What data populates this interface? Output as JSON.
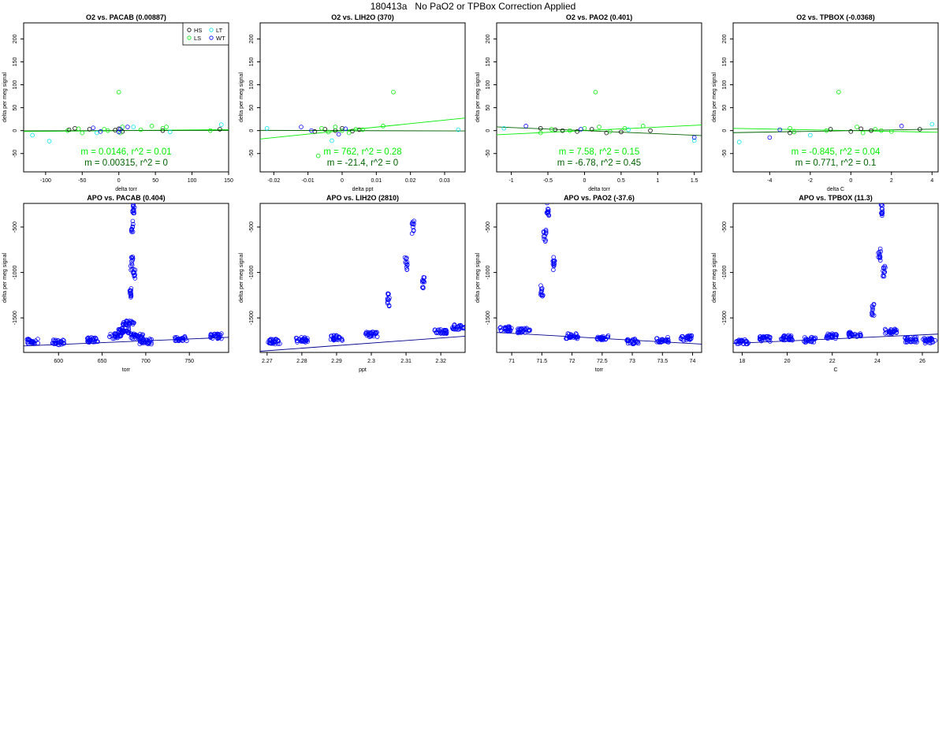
{
  "page_title": "180413a   No PaO2 or TPBox Correction Applied",
  "legend_entries": [
    {
      "label": "HS",
      "color": "#000000"
    },
    {
      "label": "LT",
      "color": "#00e5ee"
    },
    {
      "label": "LS",
      "color": "#00ee00"
    },
    {
      "label": "WT",
      "color": "#0000ff"
    }
  ],
  "chart_data": [
    {
      "type": "scatter",
      "title": "O2 vs. PACAB (0.00887)",
      "xlabel": "delta torr",
      "ylabel": "delta per meg signal",
      "xlim": [
        -130,
        150
      ],
      "ylim": [
        -90,
        235
      ],
      "xticks": [
        -100,
        -50,
        0,
        50,
        100,
        150
      ],
      "yticks": [
        -50,
        0,
        50,
        100,
        150,
        200
      ],
      "legend": "top-right",
      "annotations": [
        {
          "text": "m = 0.0146, r^2 = 0.01",
          "color": "#00ee00"
        },
        {
          "text": "m = 0.00315, r^2 = 0",
          "color": "#006400"
        }
      ],
      "fit_lines": [
        {
          "color": "#00ee00",
          "slope": 0.0146,
          "intercept": 0
        },
        {
          "color": "#006400",
          "slope": 0.00315,
          "intercept": 0
        }
      ],
      "series": [
        {
          "name": "HS",
          "color": "#000000",
          "x": [
            -68,
            -60,
            -40,
            -5,
            0,
            5,
            60,
            138
          ],
          "y": [
            2,
            5,
            3,
            1,
            4,
            -2,
            0,
            3
          ]
        },
        {
          "name": "LT",
          "color": "#00e5ee",
          "x": [
            -118,
            -95,
            -30,
            20,
            70,
            140
          ],
          "y": [
            -10,
            -23,
            -5,
            8,
            -3,
            13
          ]
        },
        {
          "name": "LS",
          "color": "#00ee00",
          "x": [
            -70,
            -55,
            -50,
            -20,
            -15,
            0,
            2,
            5,
            30,
            45,
            60,
            65,
            125
          ],
          "y": [
            0,
            4,
            -5,
            3,
            0,
            84,
            -5,
            8,
            2,
            10,
            5,
            8,
            0
          ]
        },
        {
          "name": "WT",
          "color": "#0000ff",
          "x": [
            -35,
            -25,
            0,
            2,
            12
          ],
          "y": [
            6,
            -2,
            -3,
            3,
            8
          ]
        }
      ]
    },
    {
      "type": "scatter",
      "title": "O2 vs. LIH2O (370)",
      "xlabel": "delta ppt",
      "ylabel": "delta per meg signal",
      "xlim": [
        -0.024,
        0.036
      ],
      "ylim": [
        -90,
        235
      ],
      "xticks": [
        -0.02,
        -0.01,
        0,
        0.01,
        0.02,
        0.03
      ],
      "yticks": [
        -50,
        0,
        50,
        100,
        150,
        200
      ],
      "annotations": [
        {
          "text": "m = 762, r^2 = 0.28",
          "color": "#00ee00"
        },
        {
          "text": "m = -21.4, r^2 = 0",
          "color": "#006400"
        }
      ],
      "fit_lines": [
        {
          "color": "#00ee00",
          "slope": 762,
          "intercept": 0
        },
        {
          "color": "#006400",
          "slope": -21.4,
          "intercept": 0
        }
      ],
      "series": [
        {
          "name": "HS",
          "color": "#000000",
          "x": [
            -0.008,
            -0.005,
            -0.002,
            0.0,
            0.003,
            0.005
          ],
          "y": [
            -2,
            3,
            0,
            5,
            -1,
            2
          ]
        },
        {
          "name": "LT",
          "color": "#00e5ee",
          "x": [
            -0.022,
            -0.003,
            0.034
          ],
          "y": [
            5,
            -22,
            2
          ]
        },
        {
          "name": "LS",
          "color": "#00ee00",
          "x": [
            -0.007,
            -0.006,
            -0.004,
            -0.002,
            0.0,
            0.002,
            0.004,
            0.006,
            0.012,
            0.015
          ],
          "y": [
            -55,
            5,
            -3,
            8,
            0,
            -5,
            3,
            2,
            10,
            84
          ]
        },
        {
          "name": "WT",
          "color": "#0000ff",
          "x": [
            -0.012,
            -0.009,
            -0.001,
            0.001
          ],
          "y": [
            8,
            0,
            -8,
            4
          ]
        }
      ]
    },
    {
      "type": "scatter",
      "title": "O2 vs. PAO2 (0.401)",
      "xlabel": "delta torr",
      "ylabel": "delta per meg signal",
      "xlim": [
        -1.2,
        1.6
      ],
      "ylim": [
        -90,
        235
      ],
      "xticks": [
        -1.0,
        -0.5,
        0.0,
        0.5,
        1.0,
        1.5
      ],
      "yticks": [
        -50,
        0,
        50,
        100,
        150,
        200
      ],
      "annotations": [
        {
          "text": "m = 7.58, r^2 = 0.15",
          "color": "#00ee00"
        },
        {
          "text": "m = -6.78, r^2 = 0.45",
          "color": "#006400"
        }
      ],
      "fit_lines": [
        {
          "color": "#00ee00",
          "slope": 7.58,
          "intercept": 0
        },
        {
          "color": "#006400",
          "slope": -6.78,
          "intercept": 0
        }
      ],
      "series": [
        {
          "name": "HS",
          "color": "#000000",
          "x": [
            -0.6,
            -0.4,
            -0.3,
            -0.1,
            0.1,
            0.3,
            0.5,
            0.9
          ],
          "y": [
            5,
            2,
            0,
            -2,
            3,
            -5,
            -3,
            0
          ]
        },
        {
          "name": "LT",
          "color": "#00e5ee",
          "x": [
            -1.1,
            1.5,
            0.6
          ],
          "y": [
            5,
            -22,
            2
          ]
        },
        {
          "name": "LS",
          "color": "#00ee00",
          "x": [
            -0.6,
            -0.45,
            -0.2,
            0.0,
            0.15,
            0.2,
            0.35,
            0.55,
            0.8
          ],
          "y": [
            -5,
            3,
            0,
            5,
            84,
            8,
            -2,
            5,
            10
          ]
        },
        {
          "name": "WT",
          "color": "#0000ff",
          "x": [
            -0.8,
            -0.05,
            1.5
          ],
          "y": [
            10,
            3,
            -15
          ]
        }
      ]
    },
    {
      "type": "scatter",
      "title": "O2 vs. TPBOX (-0.0368)",
      "xlabel": "delta C",
      "ylabel": "delta per meg signal",
      "xlim": [
        -5.8,
        4.3
      ],
      "ylim": [
        -90,
        235
      ],
      "xticks": [
        -4,
        -2,
        0,
        2,
        4
      ],
      "yticks": [
        -50,
        0,
        50,
        100,
        150,
        200
      ],
      "annotations": [
        {
          "text": "m = -0.845, r^2 = 0.04",
          "color": "#00ee00"
        },
        {
          "text": "m = 0.771, r^2 = 0.1",
          "color": "#006400"
        }
      ],
      "fit_lines": [
        {
          "color": "#00ee00",
          "slope": -0.845,
          "intercept": 0
        },
        {
          "color": "#006400",
          "slope": 0.771,
          "intercept": 0
        }
      ],
      "series": [
        {
          "name": "HS",
          "color": "#000000",
          "x": [
            -3,
            -1,
            0,
            0.5,
            1,
            3.4
          ],
          "y": [
            -5,
            3,
            -2,
            4,
            0,
            3
          ]
        },
        {
          "name": "LT",
          "color": "#00e5ee",
          "x": [
            -5.5,
            -2,
            4
          ],
          "y": [
            -25,
            -10,
            14
          ]
        },
        {
          "name": "LS",
          "color": "#00ee00",
          "x": [
            -3,
            -2.8,
            -1.2,
            -0.6,
            0.3,
            0.6,
            1.2,
            1.5,
            2
          ],
          "y": [
            5,
            -3,
            0,
            84,
            8,
            -5,
            3,
            0,
            -2
          ]
        },
        {
          "name": "WT",
          "color": "#0000ff",
          "x": [
            -4,
            -3.5,
            2.5
          ],
          "y": [
            -15,
            2,
            10
          ]
        }
      ]
    },
    {
      "type": "scatter",
      "title": "APO vs. PACAB (0.404)",
      "xlabel": "torr",
      "ylabel": "delta per meg signal",
      "xlim": [
        560,
        795
      ],
      "ylim": [
        -1880,
        -240
      ],
      "xticks": [
        600,
        650,
        700,
        750
      ],
      "yticks": [
        -500,
        -1000,
        -1500
      ],
      "fit_lines": [
        {
          "color": "#00008b",
          "slope": 0.404,
          "intercept": -2035
        }
      ],
      "series": [
        {
          "color": "#0000ff",
          "x": [
            570,
            600,
            640,
            665,
            675,
            680,
            683,
            684,
            685,
            686,
            687,
            690,
            700,
            740,
            780
          ],
          "y": [
            -1760,
            -1770,
            -1740,
            -1700,
            -1640,
            -1560,
            -1200,
            -900,
            -500,
            -310,
            -1000,
            -1700,
            -1760,
            -1730,
            -1700
          ]
        }
      ]
    },
    {
      "type": "scatter",
      "title": "APO vs. LIH2O (2810)",
      "xlabel": "ppt",
      "ylabel": "delta per meg signal",
      "xlim": [
        2.268,
        2.327
      ],
      "ylim": [
        -1880,
        -240
      ],
      "xticks": [
        2.27,
        2.28,
        2.29,
        2.3,
        2.31,
        2.32
      ],
      "yticks": [
        -500,
        -1000,
        -1500
      ],
      "fit_lines": [
        {
          "color": "#00008b",
          "slope": 2810,
          "intercept": -8240
        }
      ],
      "series": [
        {
          "color": "#0000ff",
          "x": [
            2.272,
            2.28,
            2.29,
            2.3,
            2.305,
            2.31,
            2.312,
            2.315,
            2.32,
            2.325
          ],
          "y": [
            -1760,
            -1740,
            -1720,
            -1680,
            -1300,
            -900,
            -500,
            -1100,
            -1650,
            -1600
          ]
        }
      ]
    },
    {
      "type": "scatter",
      "title": "APO vs. PAO2 (-37.6)",
      "xlabel": "torr",
      "ylabel": "delta per meg signal",
      "xlim": [
        70.75,
        74.15
      ],
      "ylim": [
        -1880,
        -240
      ],
      "xticks": [
        71.0,
        71.5,
        72.0,
        72.5,
        73.0,
        73.5,
        74.0
      ],
      "yticks": [
        -500,
        -1000,
        -1500
      ],
      "fit_lines": [
        {
          "color": "#00008b",
          "slope": -37.6,
          "intercept": 1000
        }
      ],
      "series": [
        {
          "color": "#0000ff",
          "x": [
            70.9,
            71.2,
            71.5,
            71.55,
            71.6,
            71.7,
            72.0,
            72.5,
            73.0,
            73.5,
            73.9
          ],
          "y": [
            -1620,
            -1640,
            -1200,
            -600,
            -300,
            -900,
            -1700,
            -1720,
            -1760,
            -1740,
            -1720
          ]
        }
      ]
    },
    {
      "type": "scatter",
      "title": "APO vs. TPBOX (11.3)",
      "xlabel": "C",
      "ylabel": "delta per meg signal",
      "xlim": [
        17.6,
        26.7
      ],
      "ylim": [
        -1880,
        -240
      ],
      "xticks": [
        18,
        20,
        22,
        24,
        26
      ],
      "yticks": [
        -500,
        -1000,
        -1500
      ],
      "fit_lines": [
        {
          "color": "#00008b",
          "slope": 11.3,
          "intercept": -1980
        }
      ],
      "series": [
        {
          "color": "#0000ff",
          "x": [
            18,
            19,
            20,
            21,
            22,
            23,
            23.8,
            24.1,
            24.2,
            24.3,
            24.6,
            25.5,
            26.3
          ],
          "y": [
            -1760,
            -1730,
            -1720,
            -1740,
            -1700,
            -1680,
            -1400,
            -800,
            -300,
            -1000,
            -1650,
            -1740,
            -1750
          ]
        }
      ]
    }
  ]
}
